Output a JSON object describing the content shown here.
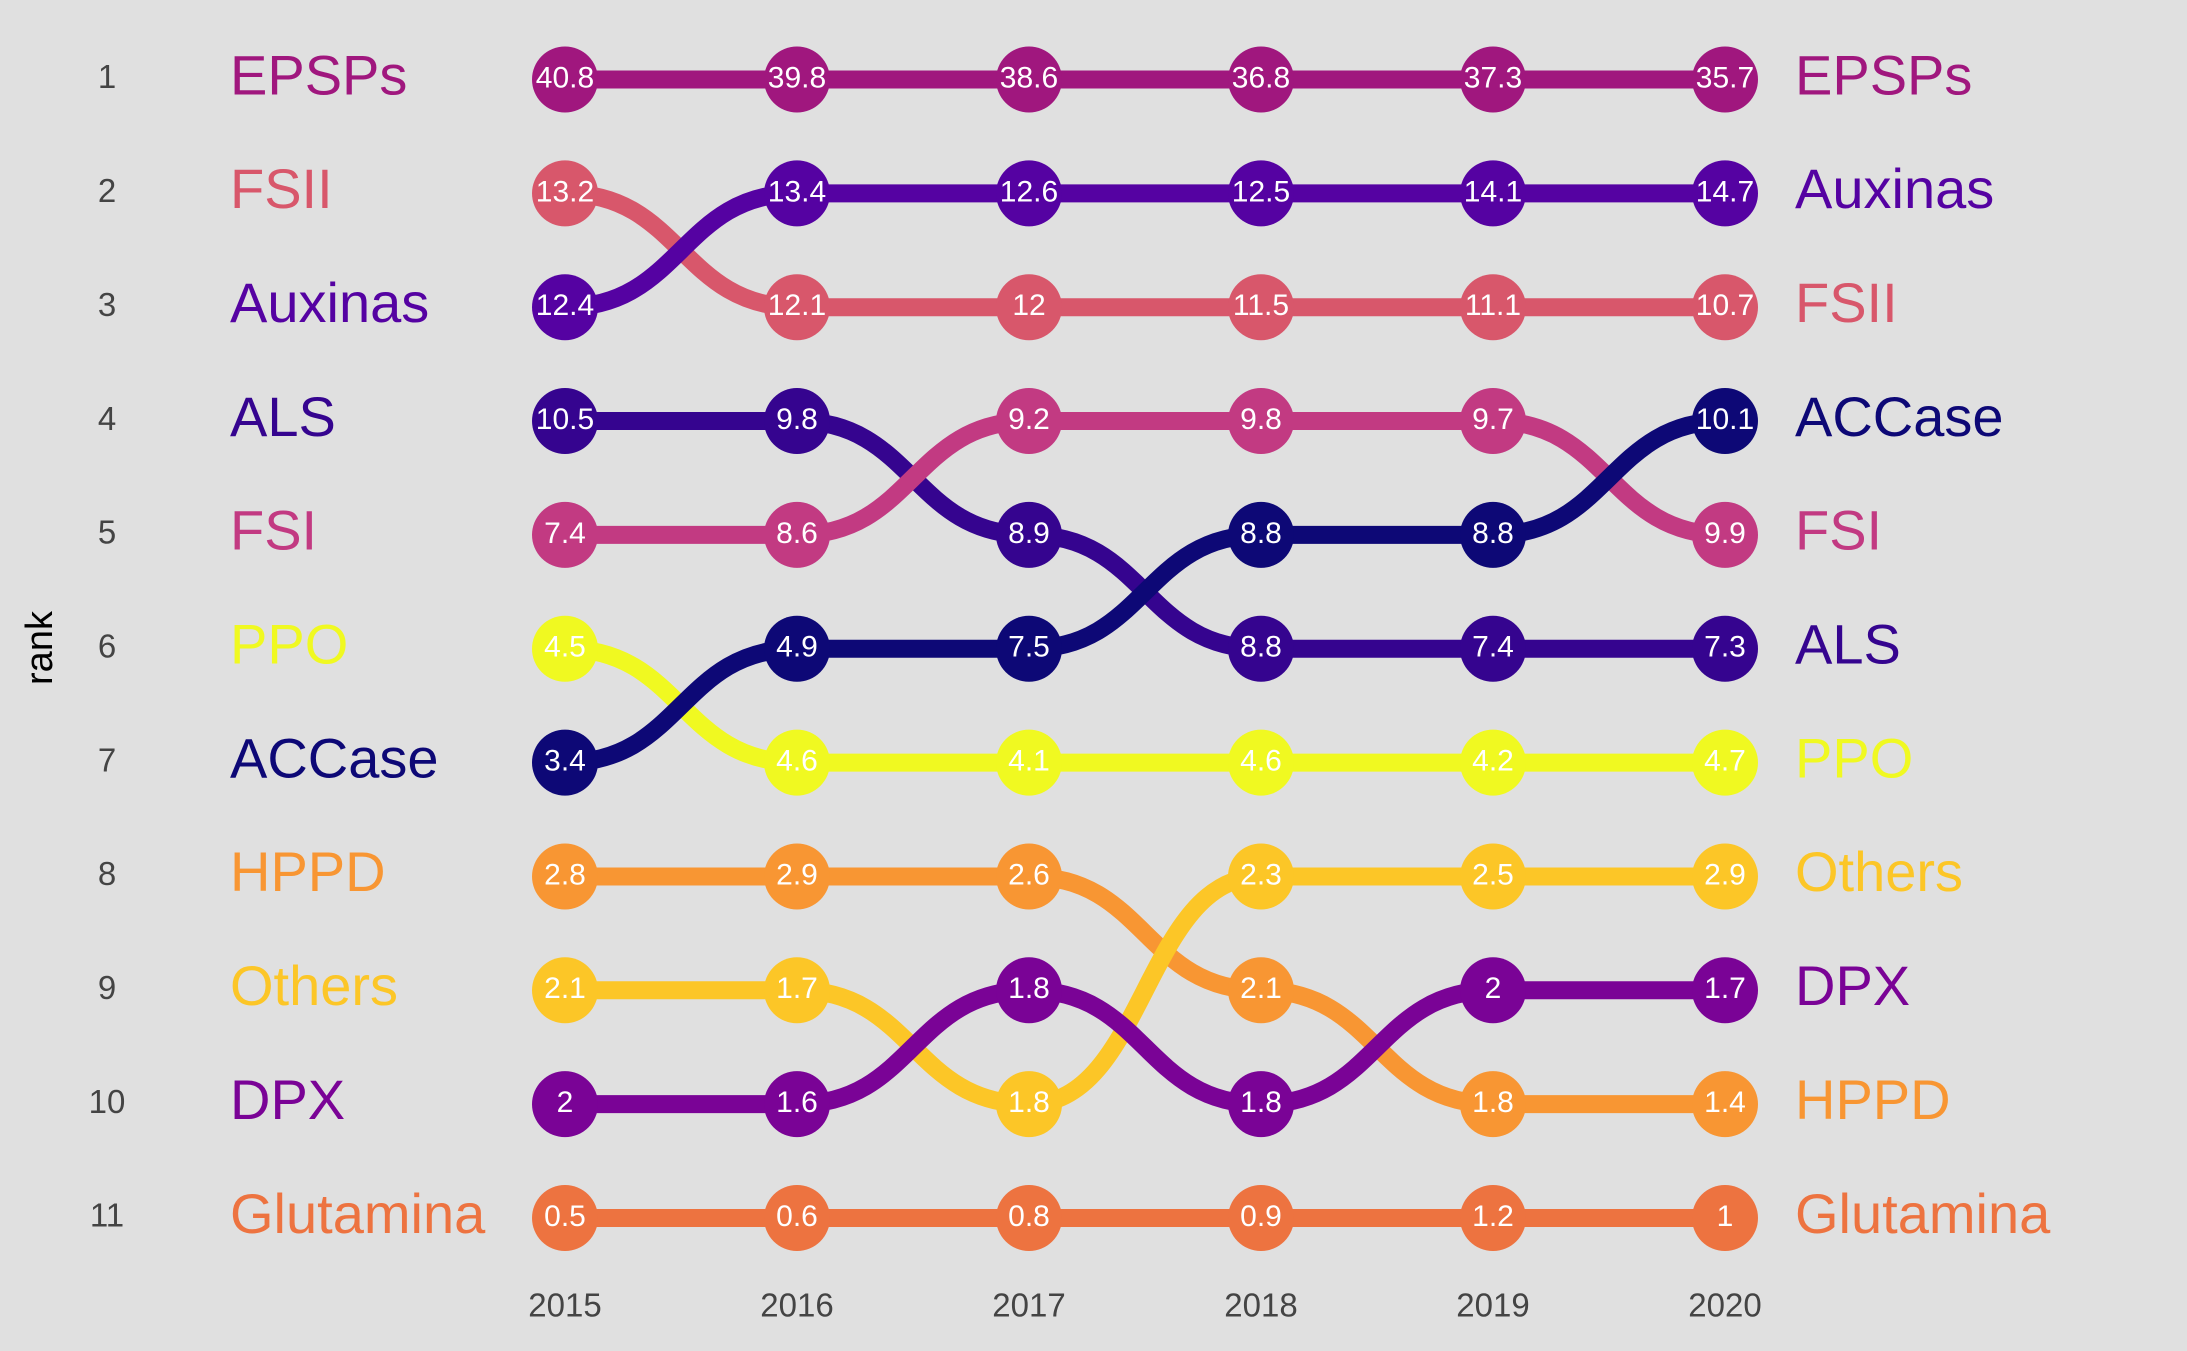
{
  "chart_data": {
    "type": "bump",
    "y_label": "rank",
    "x": [
      2015,
      2016,
      2017,
      2018,
      2019,
      2020
    ],
    "xlim": [
      2015,
      2020
    ],
    "xticks": [
      2015,
      2016,
      2017,
      2018,
      2019,
      2020
    ],
    "ylim": [
      1,
      11
    ],
    "yticks": [
      1,
      2,
      3,
      4,
      5,
      6,
      7,
      8,
      9,
      10,
      11
    ],
    "y_reversed": true,
    "series": [
      {
        "name": "EPSPs",
        "color": "#a0177e",
        "values": [
          1,
          1,
          1,
          1,
          1,
          1
        ],
        "shares": [
          40.8,
          39.8,
          38.6,
          36.8,
          37.3,
          35.7
        ]
      },
      {
        "name": "FSII",
        "color": "#d8576b",
        "values": [
          2,
          3,
          3,
          3,
          3,
          3
        ],
        "shares": [
          13.2,
          12.1,
          12,
          11.5,
          11.1,
          10.7
        ]
      },
      {
        "name": "Auxinas",
        "color": "#5502a2",
        "values": [
          3,
          2,
          2,
          2,
          2,
          2
        ],
        "shares": [
          12.4,
          13.4,
          12.6,
          12.5,
          14.1,
          14.7
        ]
      },
      {
        "name": "ALS",
        "color": "#35048f",
        "values": [
          4,
          4,
          5,
          6,
          6,
          6
        ],
        "shares": [
          10.5,
          9.8,
          8.9,
          8.8,
          7.4,
          7.3
        ]
      },
      {
        "name": "FSI",
        "color": "#c23a82",
        "values": [
          5,
          5,
          4,
          4,
          4,
          5
        ],
        "shares": [
          7.4,
          8.6,
          9.2,
          9.8,
          9.7,
          9.9
        ]
      },
      {
        "name": "PPO",
        "color": "#f0f921",
        "values": [
          6,
          7,
          7,
          7,
          7,
          7
        ],
        "shares": [
          4.5,
          4.6,
          4.1,
          4.6,
          4.2,
          4.7
        ]
      },
      {
        "name": "ACCase",
        "color": "#0d0876",
        "values": [
          7,
          6,
          6,
          5,
          5,
          4
        ],
        "shares": [
          3.4,
          4.9,
          7.5,
          8.8,
          8.8,
          10.1
        ]
      },
      {
        "name": "HPPD",
        "color": "#f89633",
        "values": [
          8,
          8,
          8,
          9,
          10,
          10
        ],
        "shares": [
          2.8,
          2.9,
          2.6,
          2.1,
          1.8,
          1.4
        ]
      },
      {
        "name": "Others",
        "color": "#fcc627",
        "values": [
          9,
          9,
          10,
          8,
          8,
          8
        ],
        "shares": [
          2.1,
          1.7,
          1.8,
          2.3,
          2.5,
          2.9
        ]
      },
      {
        "name": "DPX",
        "color": "#7a0396",
        "values": [
          10,
          10,
          9,
          10,
          9,
          9
        ],
        "shares": [
          2,
          1.6,
          1.8,
          1.8,
          2,
          1.7
        ]
      },
      {
        "name": "Glutamina",
        "color": "#ed7340",
        "values": [
          11,
          11,
          11,
          11,
          11,
          11
        ],
        "shares": [
          0.5,
          0.6,
          0.8,
          0.9,
          1.2,
          1
        ]
      }
    ]
  }
}
